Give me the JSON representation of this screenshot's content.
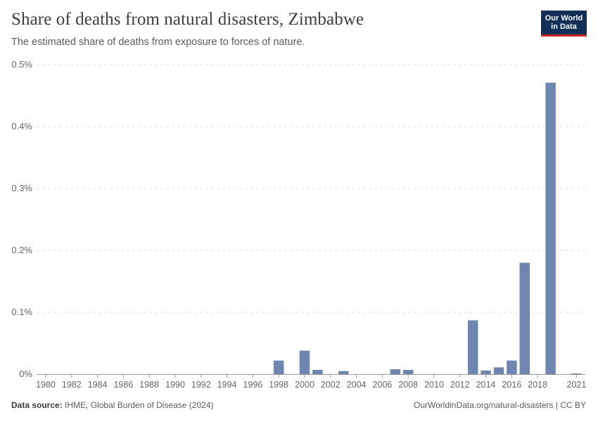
{
  "header": {
    "title": "Share of deaths from natural disasters, Zimbabwe",
    "subtitle": "The estimated share of deaths from exposure to forces of nature."
  },
  "logo": {
    "line1": "Our World",
    "line2": "in Data"
  },
  "footer": {
    "source_label": "Data source:",
    "source_text": "IHME, Global Burden of Disease (2024)",
    "link_text": "OurWorldinData.org/natural-disasters | CC BY"
  },
  "colors": {
    "bar": "#6f87b0",
    "grid": "#dddddd",
    "axis_text": "#666666"
  },
  "chart_data": {
    "type": "bar",
    "title": "Share of deaths from natural disasters, Zimbabwe",
    "xlabel": "",
    "ylabel": "",
    "ylim": [
      0,
      0.5
    ],
    "y_ticks": [
      0,
      0.1,
      0.2,
      0.3,
      0.4,
      0.5
    ],
    "y_tick_labels": [
      "0%",
      "0.1%",
      "0.2%",
      "0.3%",
      "0.4%",
      "0.5%"
    ],
    "x_ticks": [
      1980,
      1982,
      1984,
      1986,
      1988,
      1990,
      1992,
      1994,
      1996,
      1998,
      2000,
      2002,
      2004,
      2006,
      2008,
      2010,
      2012,
      2014,
      2016,
      2018,
      2021
    ],
    "x_range": [
      1980,
      2021
    ],
    "grid": true,
    "unit": "%",
    "series": [
      {
        "name": "Zimbabwe",
        "points": [
          {
            "year": 1998,
            "value": 0.022
          },
          {
            "year": 2000,
            "value": 0.038
          },
          {
            "year": 2001,
            "value": 0.007
          },
          {
            "year": 2003,
            "value": 0.005
          },
          {
            "year": 2007,
            "value": 0.008
          },
          {
            "year": 2008,
            "value": 0.007
          },
          {
            "year": 2013,
            "value": 0.087
          },
          {
            "year": 2014,
            "value": 0.006
          },
          {
            "year": 2015,
            "value": 0.011
          },
          {
            "year": 2016,
            "value": 0.022
          },
          {
            "year": 2017,
            "value": 0.18
          },
          {
            "year": 2019,
            "value": 0.471
          },
          {
            "year": 2021,
            "value": 0.001
          }
        ]
      }
    ]
  }
}
